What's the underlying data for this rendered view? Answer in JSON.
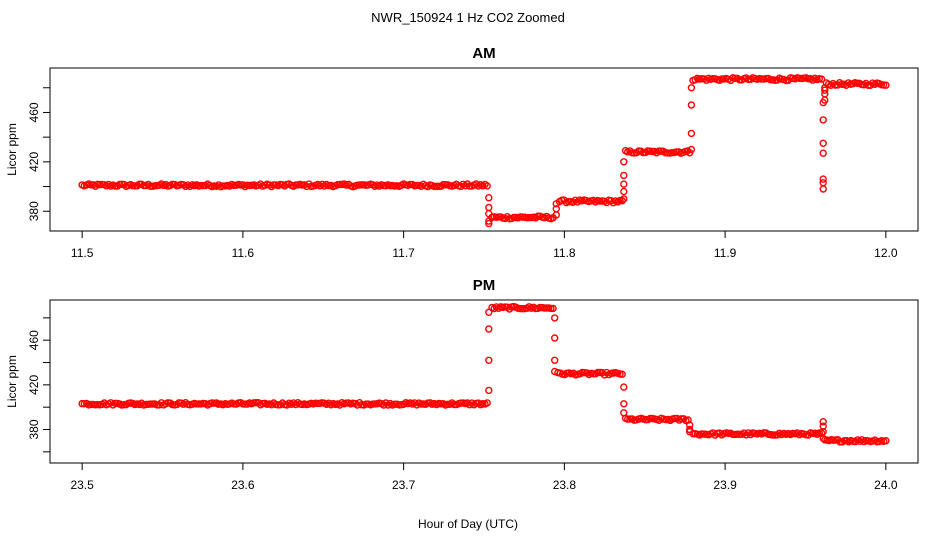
{
  "figure": {
    "title": "NWR_150924  1 Hz CO2 Zoomed",
    "xlabel": "Hour of Day (UTC)"
  },
  "colors": {
    "points": "#ff0000",
    "axes": "#000000"
  },
  "chart_data": [
    {
      "type": "scatter",
      "title": "AM",
      "ylabel": "Licor ppm",
      "xlim": [
        11.48,
        12.02
      ],
      "ylim": [
        364,
        496
      ],
      "xticks": [
        "11.5",
        "11.6",
        "11.7",
        "11.8",
        "11.9",
        "12.0"
      ],
      "yticks": [
        "380",
        "420",
        "460"
      ],
      "marker": "open-circle",
      "segments": [
        {
          "x_start": 11.5,
          "x_end": 11.752,
          "y": 401
        },
        {
          "x_start": 11.755,
          "x_end": 11.793,
          "y": 375
        },
        {
          "x_start": 11.797,
          "x_end": 11.836,
          "y": 388
        },
        {
          "x_start": 11.838,
          "x_end": 11.878,
          "y": 428
        },
        {
          "x_start": 11.88,
          "x_end": 11.96,
          "y": 487
        },
        {
          "x_start": 11.963,
          "x_end": 12.0,
          "y": 483
        }
      ],
      "transitions": [
        {
          "x": 11.753,
          "y": [
            391,
            383,
            378,
            372,
            370
          ]
        },
        {
          "x": 11.795,
          "y": [
            377,
            382,
            386
          ]
        },
        {
          "x": 11.837,
          "y": [
            390,
            396,
            402,
            409,
            420
          ]
        },
        {
          "x": 11.879,
          "y": [
            430,
            443,
            466,
            480
          ]
        },
        {
          "x": 11.961,
          "y": [
            468,
            454,
            435,
            427,
            406,
            403,
            398
          ]
        },
        {
          "x": 11.962,
          "y": [
            470,
            475,
            478,
            480
          ]
        }
      ]
    },
    {
      "type": "scatter",
      "title": "PM",
      "ylabel": "Licor ppm",
      "xlim": [
        23.48,
        24.02
      ],
      "ylim": [
        350,
        496
      ],
      "xticks": [
        "23.5",
        "23.6",
        "23.7",
        "23.8",
        "23.9",
        "24.0"
      ],
      "yticks": [
        "380",
        "420",
        "460"
      ],
      "marker": "open-circle",
      "segments": [
        {
          "x_start": 23.5,
          "x_end": 23.752,
          "y": 403
        },
        {
          "x_start": 23.755,
          "x_end": 23.793,
          "y": 489
        },
        {
          "x_start": 23.796,
          "x_end": 23.836,
          "y": 430
        },
        {
          "x_start": 23.838,
          "x_end": 23.877,
          "y": 389
        },
        {
          "x_start": 23.88,
          "x_end": 23.96,
          "y": 376
        },
        {
          "x_start": 23.962,
          "x_end": 24.0,
          "y": 370
        }
      ],
      "transitions": [
        {
          "x": 23.753,
          "y": [
            415,
            442,
            470,
            485
          ]
        },
        {
          "x": 23.794,
          "y": [
            480,
            462,
            442,
            432
          ]
        },
        {
          "x": 23.837,
          "y": [
            418,
            403,
            395
          ]
        },
        {
          "x": 23.878,
          "y": [
            384,
            380,
            378
          ]
        },
        {
          "x": 23.961,
          "y": [
            387,
            383,
            378,
            372
          ]
        }
      ]
    }
  ]
}
